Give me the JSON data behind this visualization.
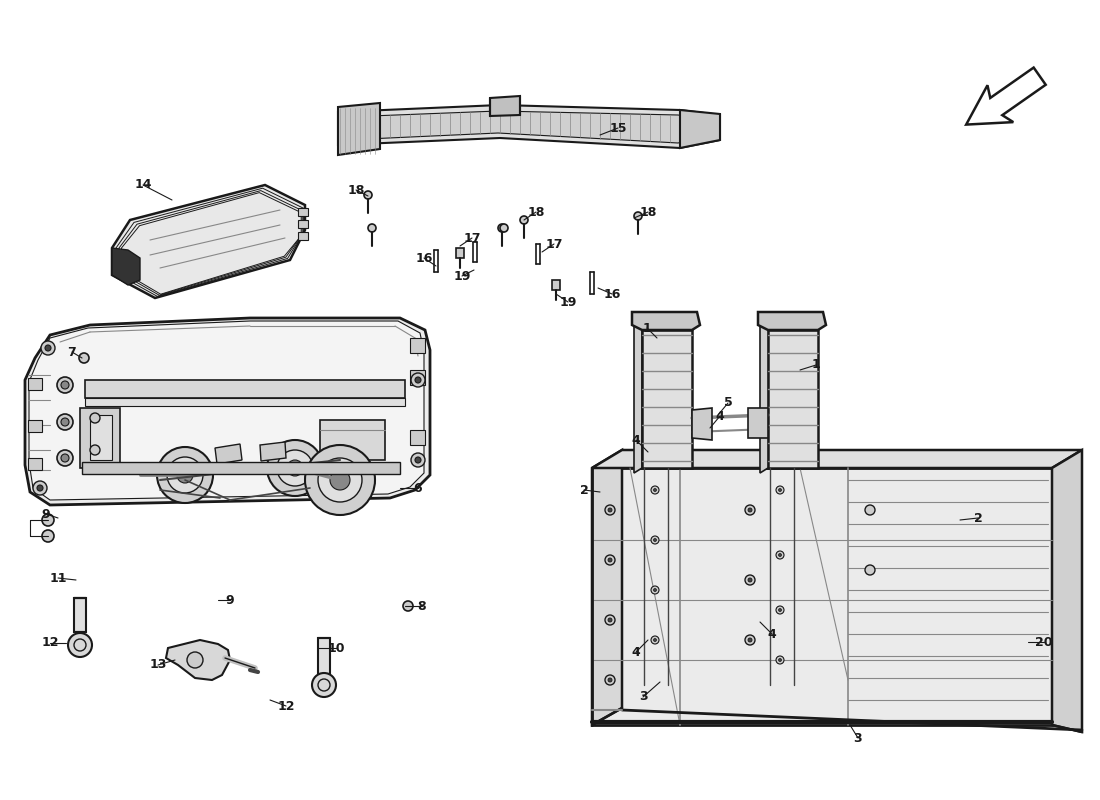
{
  "bg": "#ffffff",
  "lc": "#1a1a1a",
  "gray1": "#cccccc",
  "gray2": "#888888",
  "gray3": "#444444",
  "figsize": [
    11.0,
    8.0
  ],
  "dpi": 100,
  "labels": [
    [
      "1",
      657,
      338,
      647,
      328
    ],
    [
      "1",
      800,
      370,
      816,
      365
    ],
    [
      "2",
      600,
      492,
      584,
      490
    ],
    [
      "2",
      960,
      520,
      978,
      518
    ],
    [
      "3",
      660,
      682,
      643,
      697
    ],
    [
      "3",
      850,
      725,
      858,
      738
    ],
    [
      "4",
      648,
      452,
      636,
      440
    ],
    [
      "4",
      710,
      428,
      720,
      416
    ],
    [
      "4",
      648,
      640,
      636,
      652
    ],
    [
      "4",
      760,
      622,
      772,
      634
    ],
    [
      "5",
      718,
      415,
      728,
      403
    ],
    [
      "6",
      400,
      488,
      418,
      488
    ],
    [
      "7",
      82,
      358,
      72,
      352
    ],
    [
      "8",
      405,
      606,
      422,
      606
    ],
    [
      "9",
      58,
      518,
      46,
      514
    ],
    [
      "9",
      218,
      600,
      230,
      600
    ],
    [
      "10",
      318,
      648,
      336,
      648
    ],
    [
      "11",
      76,
      580,
      58,
      578
    ],
    [
      "12",
      66,
      643,
      50,
      643
    ],
    [
      "12",
      270,
      700,
      286,
      706
    ],
    [
      "13",
      175,
      660,
      158,
      665
    ],
    [
      "14",
      172,
      200,
      143,
      185
    ],
    [
      "15",
      600,
      135,
      618,
      128
    ],
    [
      "16",
      436,
      266,
      424,
      258
    ],
    [
      "16",
      598,
      288,
      612,
      294
    ],
    [
      "17",
      460,
      246,
      472,
      238
    ],
    [
      "17",
      542,
      252,
      554,
      244
    ],
    [
      "18",
      368,
      196,
      356,
      190
    ],
    [
      "18",
      524,
      220,
      536,
      212
    ],
    [
      "18",
      634,
      218,
      648,
      212
    ],
    [
      "19",
      474,
      270,
      462,
      276
    ],
    [
      "19",
      556,
      294,
      568,
      302
    ],
    [
      "20",
      1028,
      642,
      1044,
      642
    ]
  ]
}
